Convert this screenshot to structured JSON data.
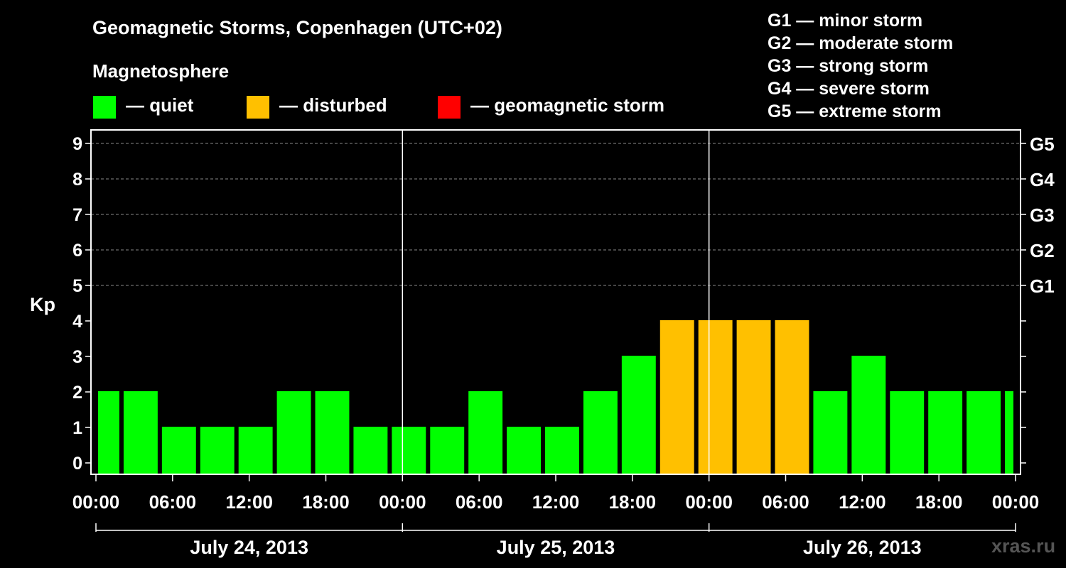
{
  "chart_data": {
    "type": "bar",
    "title": "Geomagnetic Storms, Copenhagen (UTC+02)",
    "legend_heading": "Magnetosphere",
    "legend": [
      {
        "label": "— quiet",
        "color": "#00ff00"
      },
      {
        "label": "— disturbed",
        "color": "#ffc000"
      },
      {
        "label": "— geomagnetic storm",
        "color": "#ff0000"
      }
    ],
    "storm_scale": [
      "G1 — minor storm",
      "G2 — moderate storm",
      "G3 — strong storm",
      "G4 — severe storm",
      "G5 — extreme storm"
    ],
    "ylabel": "Kp",
    "ylim": [
      0,
      9
    ],
    "y_ticks": [
      "0",
      "1",
      "2",
      "3",
      "4",
      "5",
      "6",
      "7",
      "8",
      "9"
    ],
    "right_ticks": [
      {
        "label": "G1",
        "kp": 5
      },
      {
        "label": "G2",
        "kp": 6
      },
      {
        "label": "G3",
        "kp": 7
      },
      {
        "label": "G4",
        "kp": 8
      },
      {
        "label": "G5",
        "kp": 9
      }
    ],
    "x_tick_labels": [
      "00:00",
      "06:00",
      "12:00",
      "18:00",
      "00:00",
      "06:00",
      "12:00",
      "18:00",
      "00:00",
      "06:00",
      "12:00",
      "18:00",
      "00:00"
    ],
    "x_tick_hours": [
      0,
      6,
      12,
      18,
      24,
      30,
      36,
      42,
      48,
      54,
      60,
      66,
      72
    ],
    "xlim_hours": [
      0,
      72
    ],
    "dates": [
      {
        "label": "July 24, 2013",
        "start_hour": 0,
        "end_hour": 24
      },
      {
        "label": "July 25, 2013",
        "start_hour": 24,
        "end_hour": 48
      },
      {
        "label": "July 26, 2013",
        "start_hour": 48,
        "end_hour": 72
      }
    ],
    "bars": [
      {
        "start_hour": 0,
        "end_hour": 2,
        "kp": 2,
        "status": "quiet"
      },
      {
        "start_hour": 2,
        "end_hour": 5,
        "kp": 2,
        "status": "quiet"
      },
      {
        "start_hour": 5,
        "end_hour": 8,
        "kp": 1,
        "status": "quiet"
      },
      {
        "start_hour": 8,
        "end_hour": 11,
        "kp": 1,
        "status": "quiet"
      },
      {
        "start_hour": 11,
        "end_hour": 14,
        "kp": 1,
        "status": "quiet"
      },
      {
        "start_hour": 14,
        "end_hour": 17,
        "kp": 2,
        "status": "quiet"
      },
      {
        "start_hour": 17,
        "end_hour": 20,
        "kp": 2,
        "status": "quiet"
      },
      {
        "start_hour": 20,
        "end_hour": 23,
        "kp": 1,
        "status": "quiet"
      },
      {
        "start_hour": 23,
        "end_hour": 26,
        "kp": 1,
        "status": "quiet"
      },
      {
        "start_hour": 26,
        "end_hour": 29,
        "kp": 1,
        "status": "quiet"
      },
      {
        "start_hour": 29,
        "end_hour": 32,
        "kp": 2,
        "status": "quiet"
      },
      {
        "start_hour": 32,
        "end_hour": 35,
        "kp": 1,
        "status": "quiet"
      },
      {
        "start_hour": 35,
        "end_hour": 38,
        "kp": 1,
        "status": "quiet"
      },
      {
        "start_hour": 38,
        "end_hour": 41,
        "kp": 2,
        "status": "quiet"
      },
      {
        "start_hour": 41,
        "end_hour": 44,
        "kp": 3,
        "status": "quiet"
      },
      {
        "start_hour": 44,
        "end_hour": 47,
        "kp": 4,
        "status": "disturbed"
      },
      {
        "start_hour": 47,
        "end_hour": 50,
        "kp": 4,
        "status": "disturbed"
      },
      {
        "start_hour": 50,
        "end_hour": 53,
        "kp": 4,
        "status": "disturbed"
      },
      {
        "start_hour": 53,
        "end_hour": 56,
        "kp": 4,
        "status": "disturbed"
      },
      {
        "start_hour": 56,
        "end_hour": 59,
        "kp": 2,
        "status": "quiet"
      },
      {
        "start_hour": 59,
        "end_hour": 62,
        "kp": 3,
        "status": "quiet"
      },
      {
        "start_hour": 62,
        "end_hour": 65,
        "kp": 2,
        "status": "quiet"
      },
      {
        "start_hour": 65,
        "end_hour": 68,
        "kp": 2,
        "status": "quiet"
      },
      {
        "start_hour": 68,
        "end_hour": 71,
        "kp": 2,
        "status": "quiet"
      },
      {
        "start_hour": 71,
        "end_hour": 72,
        "kp": 2,
        "status": "quiet"
      }
    ],
    "status_colors": {
      "quiet": "#00ff00",
      "disturbed": "#ffc000",
      "storm": "#ff0000"
    },
    "grid": true,
    "watermark": "xras.ru"
  }
}
